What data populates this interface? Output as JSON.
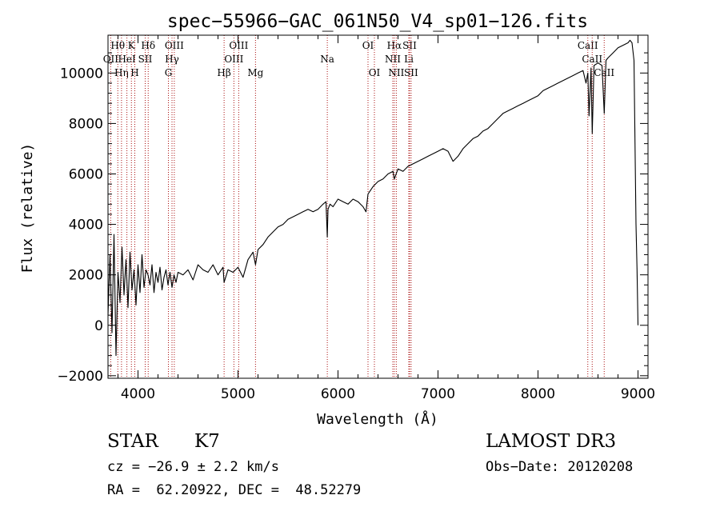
{
  "chart_data": {
    "type": "line",
    "title": "spec−55966−GAC_061N50_V4_sp01−126.fits",
    "xlabel": "Wavelength (Å)",
    "ylabel": "Flux (relative)",
    "xlim": [
      3700,
      9100
    ],
    "ylim": [
      -2100,
      11500
    ],
    "x_ticks": [
      4000,
      5000,
      6000,
      7000,
      8000,
      9000
    ],
    "x_tick_labels": [
      "4000",
      "5000",
      "6000",
      "7000",
      "8000",
      "9000"
    ],
    "y_ticks": [
      -2000,
      0,
      2000,
      4000,
      6000,
      8000,
      10000
    ],
    "y_tick_labels": [
      "−2000",
      "0",
      "2000",
      "4000",
      "6000",
      "8000",
      "10000"
    ],
    "grid": false,
    "line_color": "#000000",
    "marker_color": "#aa1111",
    "series": [
      {
        "name": "flux",
        "x": [
          3700,
          3720,
          3740,
          3760,
          3780,
          3800,
          3820,
          3840,
          3860,
          3880,
          3900,
          3920,
          3940,
          3960,
          3980,
          4000,
          4020,
          4040,
          4060,
          4080,
          4100,
          4120,
          4140,
          4160,
          4180,
          4200,
          4220,
          4240,
          4260,
          4280,
          4300,
          4320,
          4340,
          4360,
          4380,
          4400,
          4450,
          4500,
          4550,
          4600,
          4650,
          4700,
          4750,
          4800,
          4850,
          4861,
          4900,
          4950,
          5000,
          5050,
          5100,
          5150,
          5175,
          5200,
          5250,
          5300,
          5350,
          5400,
          5450,
          5500,
          5550,
          5600,
          5650,
          5700,
          5750,
          5800,
          5850,
          5880,
          5893,
          5900,
          5920,
          5950,
          6000,
          6050,
          6100,
          6150,
          6200,
          6250,
          6280,
          6300,
          6350,
          6400,
          6450,
          6500,
          6550,
          6563,
          6600,
          6650,
          6700,
          6750,
          6800,
          6850,
          6900,
          6950,
          7000,
          7050,
          7100,
          7150,
          7200,
          7250,
          7300,
          7350,
          7400,
          7450,
          7500,
          7550,
          7600,
          7650,
          7700,
          7750,
          7800,
          7850,
          7900,
          7950,
          8000,
          8050,
          8100,
          8150,
          8200,
          8250,
          8300,
          8350,
          8400,
          8450,
          8480,
          8498,
          8510,
          8530,
          8542,
          8560,
          8600,
          8640,
          8662,
          8680,
          8700,
          8750,
          8800,
          8850,
          8900,
          8920,
          8940,
          8960,
          8980,
          8990,
          9000
        ],
        "y": [
          400,
          2800,
          -300,
          3600,
          -1200,
          2100,
          900,
          3100,
          1200,
          2600,
          700,
          2900,
          1400,
          2200,
          800,
          2400,
          1300,
          2800,
          1500,
          2200,
          2000,
          1600,
          2400,
          1300,
          2100,
          1700,
          2300,
          1400,
          1900,
          2200,
          1600,
          2100,
          1500,
          2000,
          1700,
          2100,
          2000,
          2200,
          1800,
          2400,
          2200,
          2100,
          2400,
          2000,
          2300,
          1700,
          2200,
          2100,
          2300,
          1900,
          2600,
          2900,
          2400,
          3000,
          3200,
          3500,
          3700,
          3900,
          4000,
          4200,
          4300,
          4400,
          4500,
          4600,
          4500,
          4600,
          4800,
          4900,
          3500,
          4600,
          4800,
          4700,
          5000,
          4900,
          4800,
          5000,
          4900,
          4700,
          4500,
          5200,
          5500,
          5700,
          5800,
          6000,
          6100,
          5800,
          6200,
          6100,
          6300,
          6400,
          6500,
          6600,
          6700,
          6800,
          6900,
          7000,
          6900,
          6500,
          6700,
          7000,
          7200,
          7400,
          7500,
          7700,
          7800,
          8000,
          8200,
          8400,
          8500,
          8600,
          8700,
          8800,
          8900,
          9000,
          9100,
          9300,
          9400,
          9500,
          9600,
          9700,
          9800,
          9900,
          10000,
          10100,
          9600,
          10000,
          8300,
          10200,
          7600,
          10300,
          10400,
          10300,
          8400,
          10500,
          10600,
          10800,
          11000,
          11100,
          11200,
          11300,
          11200,
          10500,
          4000,
          2200,
          0
        ]
      }
    ],
    "lines": [
      {
        "name": "Hθ",
        "wavelength": 3798,
        "row": 1
      },
      {
        "name": "OII",
        "wavelength": 3727,
        "row": 2
      },
      {
        "name": "Hη",
        "wavelength": 3835,
        "row": 3
      },
      {
        "name": "HeI",
        "wavelength": 3889,
        "row": 2
      },
      {
        "name": "K",
        "wavelength": 3934,
        "row": 1
      },
      {
        "name": "H",
        "wavelength": 3968,
        "row": 3
      },
      {
        "name": "SII",
        "wavelength": 4072,
        "row": 2
      },
      {
        "name": "Hδ",
        "wavelength": 4102,
        "row": 1
      },
      {
        "name": "OIII",
        "wavelength": 4363,
        "row": 1
      },
      {
        "name": "Hγ",
        "wavelength": 4340,
        "row": 2
      },
      {
        "name": "G",
        "wavelength": 4304,
        "row": 3
      },
      {
        "name": "Hβ",
        "wavelength": 4861,
        "row": 3
      },
      {
        "name": "OIII",
        "wavelength": 4959,
        "row": 2
      },
      {
        "name": "OIII",
        "wavelength": 5007,
        "row": 1
      },
      {
        "name": "Mg",
        "wavelength": 5175,
        "row": 3
      },
      {
        "name": "Na",
        "wavelength": 5893,
        "row": 2
      },
      {
        "name": "OI",
        "wavelength": 6300,
        "row": 1
      },
      {
        "name": "OI",
        "wavelength": 6364,
        "row": 3
      },
      {
        "name": "Hα",
        "wavelength": 6563,
        "row": 1
      },
      {
        "name": "NII",
        "wavelength": 6548,
        "row": 2
      },
      {
        "name": "NII",
        "wavelength": 6583,
        "row": 3
      },
      {
        "name": "SII",
        "wavelength": 6716,
        "row": 1
      },
      {
        "name": "Li",
        "wavelength": 6708,
        "row": 2
      },
      {
        "name": "SII",
        "wavelength": 6731,
        "row": 3
      },
      {
        "name": "CaII",
        "wavelength": 8498,
        "row": 1
      },
      {
        "name": "CaII",
        "wavelength": 8542,
        "row": 2
      },
      {
        "name": "CaII",
        "wavelength": 8662,
        "row": 3
      }
    ]
  },
  "info": {
    "class": "STAR",
    "subclass": "K7",
    "survey": "LAMOST DR3",
    "cz": "cz = −26.9 ± 2.2 km/s",
    "obs_date": "Obs−Date: 20120208",
    "coords": "RA =  62.20922, DEC =  48.52279"
  }
}
